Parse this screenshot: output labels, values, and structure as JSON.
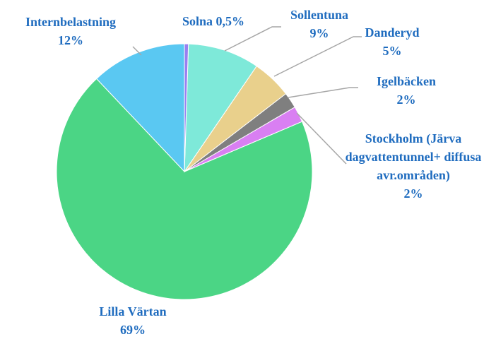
{
  "chart_data": {
    "type": "pie",
    "categories": [
      "Solna",
      "Sollentuna",
      "Danderyd",
      "Igelbäcken",
      "Stockholm (Järva dagvattentunnel+ diffusa avr.områden)",
      "Lilla Värtan",
      "Internbelastning"
    ],
    "values": [
      0.5,
      9,
      5,
      2,
      2,
      69,
      12
    ],
    "value_labels": [
      "0,5%",
      "9%",
      "5%",
      "2%",
      "2%",
      "69%",
      "12%"
    ],
    "colors": [
      "#9a7ff0",
      "#7ee9d9",
      "#e9d08c",
      "#7f7f7f",
      "#d97ff2",
      "#4bd585",
      "#5ac8f2"
    ]
  }
}
